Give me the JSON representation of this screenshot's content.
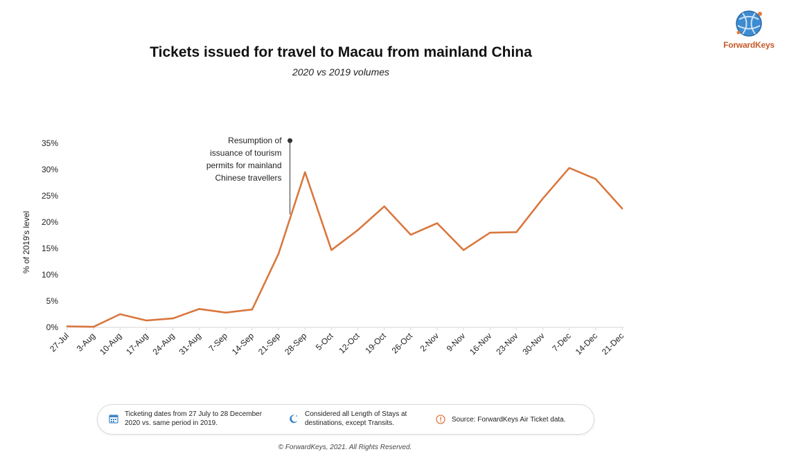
{
  "logo": {
    "brand": "ForwardKeys",
    "icon": "globe-icon"
  },
  "chart_data": {
    "type": "line",
    "title": "Tickets issued for travel to Macau from mainland China",
    "subtitle": "2020 vs 2019 volumes",
    "xlabel": "",
    "ylabel": "% of 2019's level",
    "ylim": [
      0,
      35
    ],
    "yticks": [
      "0%",
      "5%",
      "10%",
      "15%",
      "20%",
      "25%",
      "30%",
      "35%"
    ],
    "ytick_values": [
      0,
      5,
      10,
      15,
      20,
      25,
      30,
      35
    ],
    "categories": [
      "27-Jul",
      "3-Aug",
      "10-Aug",
      "17-Aug",
      "24-Aug",
      "31-Aug",
      "7-Sep",
      "14-Sep",
      "21-Sep",
      "28-Sep",
      "5-Oct",
      "12-Oct",
      "19-Oct",
      "26-Oct",
      "2-Nov",
      "9-Nov",
      "16-Nov",
      "23-Nov",
      "30-Nov",
      "7-Dec",
      "14-Dec",
      "21-Dec"
    ],
    "series": [
      {
        "values": [
          0.2,
          0.1,
          2.5,
          1.3,
          1.7,
          3.5,
          2.8,
          3.4,
          14,
          29.5,
          14.7,
          18.5,
          23,
          17.6,
          19.8,
          14.7,
          18,
          18.1,
          24.5,
          30.3,
          28.2,
          22.6
        ]
      }
    ],
    "line_color": "#d9773e",
    "grid": false,
    "annotation": {
      "text_lines": [
        "Resumption of",
        "issuance of tourism",
        "permits for mainland",
        "Chinese travellers"
      ],
      "x_category": "21-Sep",
      "x_offset": 0.43,
      "y_top": 35.5,
      "y_bottom": 21.5
    }
  },
  "footer": {
    "item1": {
      "icon": "calendar-icon",
      "text": "Ticketing dates from 27 July to 28 December 2020 vs. same period in 2019."
    },
    "item2": {
      "icon": "moon-icon",
      "text": "Considered all Length of Stays at destinations, except Transits."
    },
    "item3": {
      "icon": "exclamation-icon",
      "text": "Source: ForwardKeys Air Ticket data."
    }
  },
  "copyright": "© ForwardKeys, 2021. All Rights Reserved.",
  "colors": {
    "accent": "#d9773e",
    "brand": "#2f7fc1",
    "footer_icon_blue": "#3f86c6",
    "footer_icon_orange": "#e0793e"
  }
}
